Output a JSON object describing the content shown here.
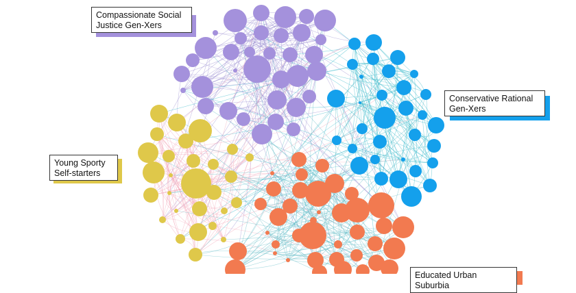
{
  "network": {
    "clusters": [
      {
        "id": "purple",
        "label": "Compassionate Social\nJustice Gen-Xers",
        "color": "#a491dc",
        "edge_color": "#9b8ed1"
      },
      {
        "id": "blue",
        "label": "Conservative Rational\nGen-Xers",
        "color": "#14a0ec",
        "edge_color": "#2fb7c9"
      },
      {
        "id": "yellow",
        "label": "Young Sporty\nSelf-starters",
        "color": "#dfc84a",
        "edge_color": "#f2a6b8"
      },
      {
        "id": "orange",
        "label": "Educated Urban Suburbia",
        "color": "#f27a50",
        "edge_color": "#5fb9c4"
      }
    ]
  }
}
